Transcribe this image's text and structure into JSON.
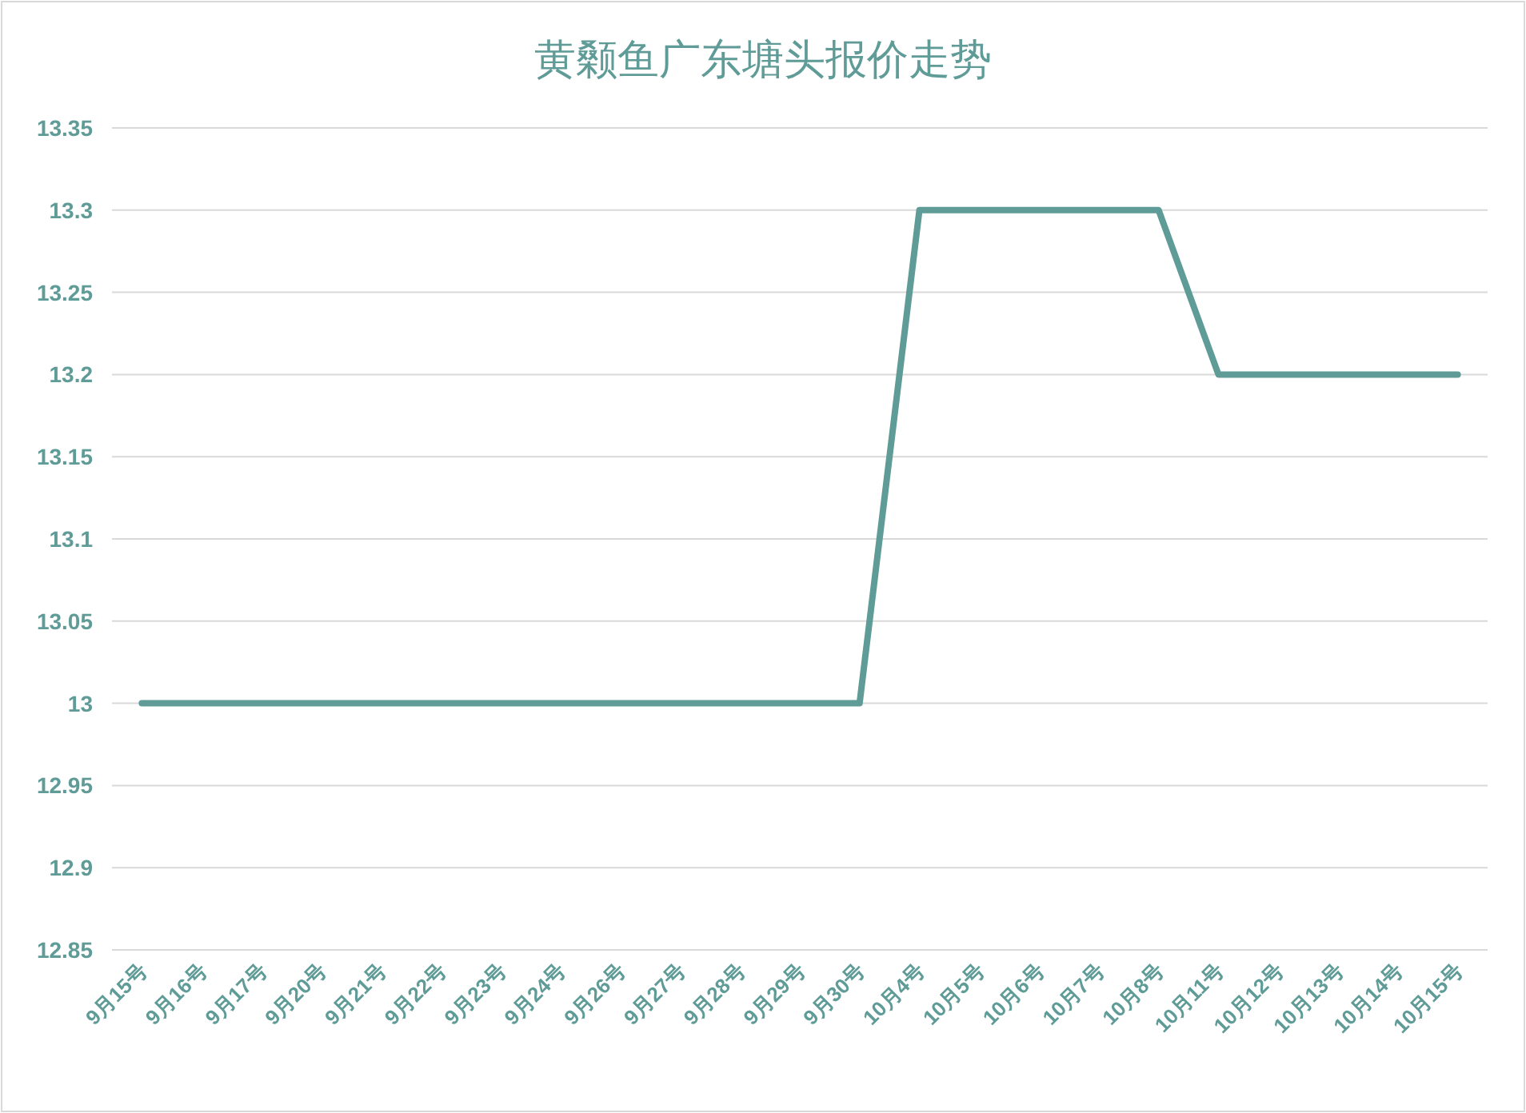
{
  "chart_data": {
    "type": "line",
    "title": "黄颡鱼广东塘头报价走势",
    "categories": [
      "9月15号",
      "9月16号",
      "9月17号",
      "9月20号",
      "9月21号",
      "9月22号",
      "9月23号",
      "9月24号",
      "9月26号",
      "9月27号",
      "9月28号",
      "9月29号",
      "9月30号",
      "10月4号",
      "10月5号",
      "10月6号",
      "10月7号",
      "10月8号",
      "10月11号",
      "10月12号",
      "10月13号",
      "10月14号",
      "10月15号"
    ],
    "series": [
      {
        "color": "#5f9b97",
        "values": [
          13,
          13,
          13,
          13,
          13,
          13,
          13,
          13,
          13,
          13,
          13,
          13,
          13,
          13.3,
          13.3,
          13.3,
          13.3,
          13.3,
          13.2,
          13.2,
          13.2,
          13.2,
          13.2
        ]
      }
    ],
    "ylim": [
      12.85,
      13.35
    ],
    "yticks": [
      12.85,
      12.9,
      12.95,
      13,
      13.05,
      13.1,
      13.15,
      13.2,
      13.25,
      13.3,
      13.35
    ],
    "grid": "y"
  }
}
